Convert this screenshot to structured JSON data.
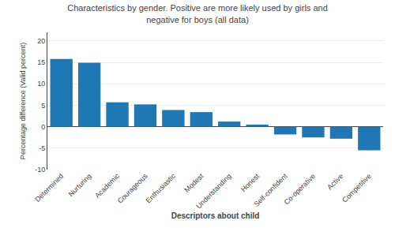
{
  "chart_data": {
    "type": "bar",
    "title": "Characteristics by gender. Positive are more likely used by girls and\nnegative for boys (all data)",
    "xlabel": "Descriptors about child",
    "ylabel": "Percentage difference (Valid percent)",
    "categories": [
      "Determined",
      "Nurturing",
      "Academic",
      "Courageous",
      "Enthusiastic",
      "Modest",
      "Understanding",
      "Honest",
      "Self-confident",
      "Co-operative",
      "Active",
      "Competitive"
    ],
    "values": [
      15.8,
      14.9,
      5.7,
      5.2,
      3.9,
      3.4,
      1.2,
      0.5,
      -1.8,
      -2.5,
      -2.8,
      -5.5
    ],
    "ylim": [
      -10,
      22
    ],
    "yticks": [
      -10,
      -5,
      0,
      5,
      10,
      15,
      20
    ],
    "grid": true
  }
}
